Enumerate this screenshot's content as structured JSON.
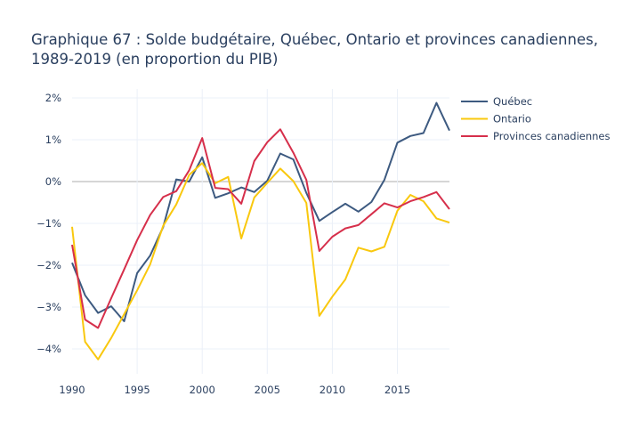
{
  "chart_data": {
    "type": "line",
    "title": "Graphique 67 : Solde budgétaire, Québec, Ontario et provinces canadiennes, 1989-2019 (en proportion du PIB)",
    "title_lines": [
      "Graphique 67 : Solde budgétaire, Québec, Ontario et provinces canadiennes,",
      "1989-2019 (en proportion du PIB)"
    ],
    "xlabel": "",
    "ylabel": "",
    "x": [
      1990,
      1991,
      1992,
      1993,
      1994,
      1995,
      1996,
      1997,
      1998,
      1999,
      2000,
      2001,
      2002,
      2003,
      2004,
      2005,
      2006,
      2007,
      2008,
      2009,
      2010,
      2011,
      2012,
      2013,
      2014,
      2015,
      2016,
      2017,
      2018,
      2019
    ],
    "xlim": [
      1990,
      2019
    ],
    "ylim": [
      -4.6,
      2.2
    ],
    "x_ticks": [
      1990,
      1995,
      2000,
      2005,
      2010,
      2015
    ],
    "x_tick_labels": [
      "1990",
      "1995",
      "2000",
      "2005",
      "2010",
      "2015"
    ],
    "y_ticks": [
      2,
      1,
      0,
      -1,
      -2,
      -3,
      -4
    ],
    "y_tick_labels": [
      "2%",
      "1%",
      "0%",
      "−1%",
      "−2%",
      "−3%",
      "−4%"
    ],
    "grid": true,
    "zero_line": true,
    "legend_position": "top-right-outside",
    "series": [
      {
        "name": "Québec",
        "color": "#3d5a80",
        "values": [
          -1.94,
          -2.72,
          -3.14,
          -2.98,
          -3.34,
          -2.19,
          -1.77,
          -1.09,
          0.05,
          0.0,
          0.58,
          -0.39,
          -0.28,
          -0.14,
          -0.25,
          0.02,
          0.67,
          0.53,
          -0.27,
          -0.94,
          -0.73,
          -0.53,
          -0.72,
          -0.49,
          0.04,
          0.93,
          1.09,
          1.16,
          1.88,
          1.22
        ]
      },
      {
        "name": "Ontario",
        "color": "#f9c80e",
        "values": [
          -1.08,
          -3.83,
          -4.25,
          -3.74,
          -3.17,
          -2.6,
          -1.98,
          -1.06,
          -0.55,
          0.16,
          0.44,
          -0.04,
          0.11,
          -1.36,
          -0.38,
          -0.03,
          0.31,
          0.01,
          -0.51,
          -3.21,
          -2.75,
          -2.34,
          -1.58,
          -1.67,
          -1.56,
          -0.7,
          -0.32,
          -0.47,
          -0.88,
          -0.98
        ]
      },
      {
        "name": "Provinces canadiennes",
        "color": "#d62f4b",
        "values": [
          -1.51,
          -3.3,
          -3.5,
          -2.79,
          -2.1,
          -1.4,
          -0.8,
          -0.37,
          -0.23,
          0.27,
          1.04,
          -0.15,
          -0.18,
          -0.53,
          0.49,
          0.94,
          1.25,
          0.69,
          0.04,
          -1.66,
          -1.32,
          -1.12,
          -1.04,
          -0.78,
          -0.52,
          -0.62,
          -0.47,
          -0.37,
          -0.25,
          -0.66
        ]
      }
    ]
  },
  "colors": {
    "text": "#2a3f5f",
    "grid": "#ebf0f8",
    "zero_line": "#d6d6d6"
  }
}
